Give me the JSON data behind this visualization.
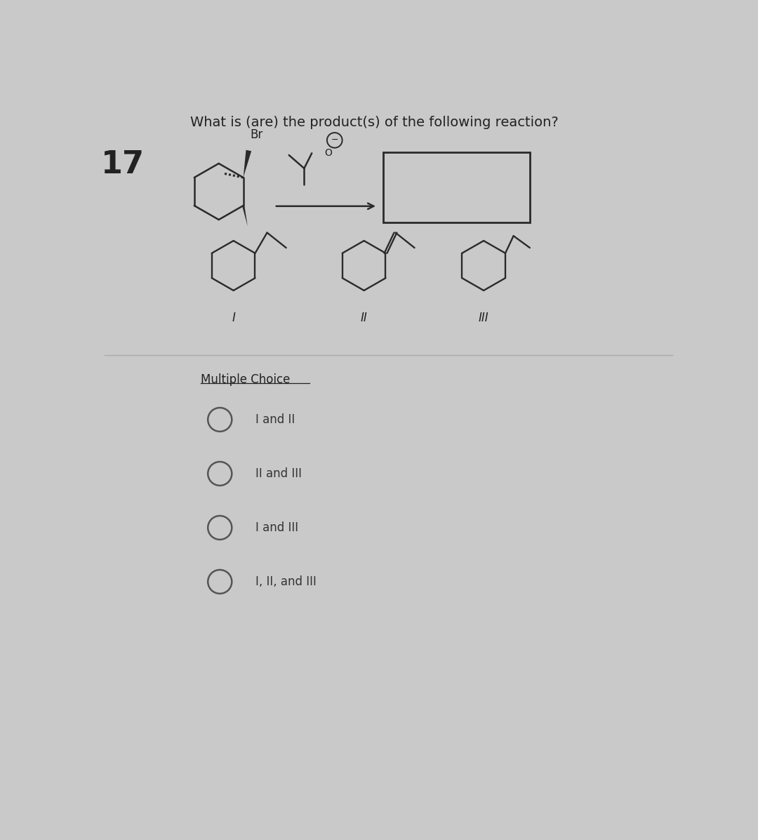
{
  "question_number": "17",
  "question_text": "What is (are) the product(s) of the following reaction?",
  "section_label": "Multiple Choice",
  "choices": [
    "I and II",
    "II and III",
    "I and III",
    "I, II, and III"
  ],
  "roman_labels": [
    "I",
    "II",
    "III"
  ],
  "bg_color": "#c9c9c9",
  "text_color": "#222222",
  "choice_text_color": "#333333",
  "line_color": "#2a2a2a",
  "font_size_question": 14,
  "font_size_choice": 11,
  "font_size_number": 32,
  "font_size_section": 11,
  "font_size_roman": 10,
  "font_size_br": 9,
  "font_size_o": 9
}
